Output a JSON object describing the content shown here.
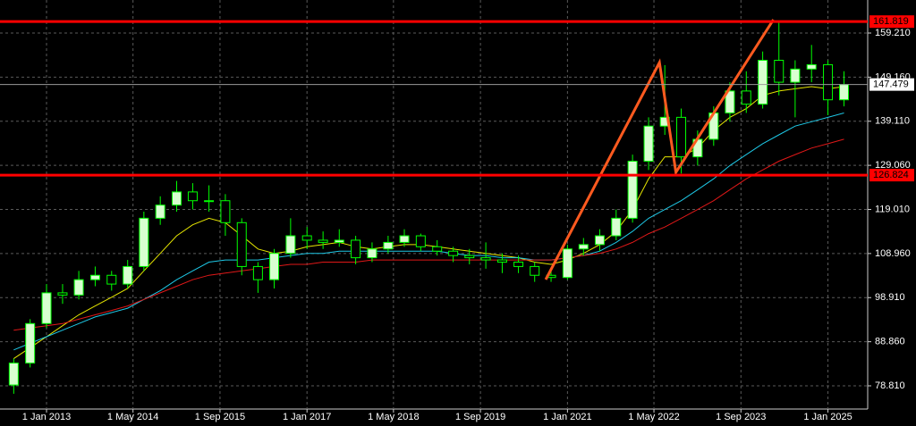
{
  "chart_data": {
    "type": "candlestick",
    "x": [
      "2012-07-01",
      "2012-10-01",
      "2013-01-01",
      "2013-04-01",
      "2013-07-01",
      "2013-10-01",
      "2014-01-01",
      "2014-04-01",
      "2014-07-01",
      "2014-10-01",
      "2015-01-01",
      "2015-04-01",
      "2015-07-01",
      "2015-10-01",
      "2016-01-01",
      "2016-04-01",
      "2016-07-01",
      "2016-10-01",
      "2017-01-01",
      "2017-04-01",
      "2017-07-01",
      "2017-10-01",
      "2018-01-01",
      "2018-04-01",
      "2018-07-01",
      "2018-10-01",
      "2019-01-01",
      "2019-04-01",
      "2019-07-01",
      "2019-10-01",
      "2020-01-01",
      "2020-04-01",
      "2020-07-01",
      "2020-10-01",
      "2021-01-01",
      "2021-04-01",
      "2021-07-01",
      "2021-10-01",
      "2022-01-01",
      "2022-04-01",
      "2022-07-01",
      "2022-10-01",
      "2023-01-01",
      "2023-04-01",
      "2023-07-01",
      "2023-10-01",
      "2024-01-01",
      "2024-04-01",
      "2024-07-01",
      "2024-10-01",
      "2025-01-01",
      "2025-04-01"
    ],
    "open": [
      79,
      84,
      93,
      100,
      99.5,
      103,
      104,
      102,
      106,
      117,
      120,
      123,
      121,
      121,
      116,
      106,
      103,
      109,
      113,
      112,
      111.5,
      112,
      108,
      110,
      111.5,
      113,
      110.5,
      109.5,
      108.5,
      108,
      107.5,
      107,
      106,
      104,
      103.5,
      110,
      111,
      113,
      117,
      130,
      138,
      140,
      131,
      135,
      141,
      146,
      143,
      153,
      148,
      151,
      152,
      144
    ],
    "high": [
      85,
      94,
      102,
      102,
      105,
      106,
      105,
      107.5,
      118.5,
      122,
      125.5,
      125,
      124.5,
      122.5,
      117,
      107,
      110,
      117,
      115,
      114,
      114.5,
      113,
      111.5,
      113,
      114.5,
      113.5,
      112,
      110.5,
      110,
      111.5,
      109,
      108.5,
      107,
      105,
      111,
      112.5,
      114.5,
      119,
      131.5,
      140,
      151.9,
      142,
      137,
      142.5,
      148,
      150.5,
      155,
      161.6,
      153,
      156.5,
      153,
      150.5
    ],
    "low": [
      77,
      83,
      92,
      97.5,
      98.5,
      101.5,
      100.5,
      101,
      105,
      115.5,
      118.5,
      119,
      118.5,
      113,
      104,
      100,
      101,
      108,
      110,
      110,
      110.5,
      106.5,
      107,
      109,
      110.5,
      109.5,
      108.5,
      107,
      106.5,
      105.5,
      104.5,
      104.5,
      102.5,
      102.5,
      103,
      108.5,
      109.5,
      112,
      116,
      128,
      136,
      127.2,
      129,
      133.5,
      139,
      141,
      142,
      145,
      140,
      148,
      140.5,
      142.5
    ],
    "close": [
      84,
      93,
      100,
      99.5,
      103,
      104,
      102,
      106,
      117,
      120,
      123,
      121,
      121,
      116,
      106,
      103,
      109,
      113,
      112,
      111.5,
      112,
      108,
      110,
      111.5,
      113,
      110.5,
      109.5,
      108.5,
      108,
      107.5,
      107,
      106,
      104,
      103.5,
      110,
      111,
      113,
      117,
      130,
      138,
      140,
      131,
      135,
      141,
      146,
      143,
      153,
      148,
      151,
      152,
      144,
      147.479
    ],
    "up_color": "#d8ffd0",
    "down_color": "#000000",
    "wick_color": "#00ff00",
    "moving_averages": [
      {
        "color": "#e6e600",
        "values": [
          85,
          87.5,
          90,
          92.5,
          95,
          97,
          99,
          101,
          105,
          109,
          113,
          115.5,
          117,
          116,
          113,
          110,
          109,
          109.5,
          110.5,
          111,
          111.5,
          110.5,
          110,
          110.5,
          111,
          111,
          110.5,
          110,
          109.5,
          109,
          108.5,
          108,
          107,
          106.5,
          107.5,
          109,
          111,
          114,
          119,
          126,
          131,
          131,
          133,
          137,
          140,
          142,
          145,
          146,
          146.5,
          147,
          146.5,
          147
        ]
      },
      {
        "color": "#1ec8e6",
        "values": [
          87,
          88.5,
          90,
          91.5,
          93,
          94.5,
          95.5,
          96.5,
          98.5,
          100.5,
          103,
          105,
          107,
          107.5,
          107.5,
          107.5,
          108,
          108.5,
          109,
          109,
          109.5,
          109.5,
          109.5,
          109.5,
          109.5,
          109.5,
          109.5,
          109,
          108.5,
          108.5,
          108,
          108,
          107.5,
          107.5,
          108,
          108.5,
          109.5,
          111.5,
          114,
          117,
          119,
          121,
          123.5,
          126,
          129,
          131.5,
          134,
          136,
          138,
          139,
          140,
          141
        ]
      },
      {
        "color": "#e01818",
        "values": [
          91.5,
          92,
          92.5,
          93,
          94,
          95,
          96,
          97,
          98.5,
          100,
          101.5,
          103,
          104,
          104.5,
          105,
          105.5,
          106,
          106.5,
          106.5,
          107,
          107,
          107,
          107.5,
          107.5,
          107.5,
          107.5,
          107.5,
          107.5,
          107.5,
          107.5,
          107.5,
          107.5,
          107.5,
          107.5,
          108,
          108.5,
          109,
          110,
          111.5,
          113.5,
          115,
          117,
          119,
          121,
          123.5,
          126,
          128,
          130,
          131.5,
          133,
          134,
          135
        ]
      }
    ],
    "zigzag": {
      "color": "#ff5a1f",
      "x": [
        "2020-09-01",
        "2022-06-01",
        "2022-09-01",
        "2024-03-01"
      ],
      "values": [
        103.03,
        152.49,
        127.46,
        162.26
      ]
    },
    "levels": [
      161.819,
      126.824
    ],
    "level_color": "#ff0000",
    "last_price": 147.479,
    "xlim": [
      "2012-04-15",
      "2025-08-12"
    ],
    "ylim": [
      73.52,
      166.74
    ],
    "yticks": [
      {
        "value": 78.81,
        "label": "78.810"
      },
      {
        "value": 88.86,
        "label": "88.860"
      },
      {
        "value": 98.91,
        "label": "98.910"
      },
      {
        "value": 108.96,
        "label": "108.960"
      },
      {
        "value": 119.01,
        "label": "119.010"
      },
      {
        "value": 129.06,
        "label": "129.060"
      },
      {
        "value": 139.11,
        "label": "139.110"
      },
      {
        "value": 149.16,
        "label": "149.160"
      },
      {
        "value": 159.21,
        "label": "159.210"
      }
    ],
    "xticks": [
      {
        "value": "2013-01-01",
        "label": "1 Jan 2013"
      },
      {
        "value": "2014-05-01",
        "label": "1 May 2014"
      },
      {
        "value": "2015-09-01",
        "label": "1 Sep 2015"
      },
      {
        "value": "2017-01-01",
        "label": "1 Jan 2017"
      },
      {
        "value": "2018-05-01",
        "label": "1 May 2018"
      },
      {
        "value": "2019-09-01",
        "label": "1 Sep 2019"
      },
      {
        "value": "2021-01-01",
        "label": "1 Jan 2021"
      },
      {
        "value": "2022-05-01",
        "label": "1 May 2022"
      },
      {
        "value": "2023-09-01",
        "label": "1 Sep 2023"
      },
      {
        "value": "2025-01-01",
        "label": "1 Jan 2025"
      }
    ],
    "grid": true
  }
}
